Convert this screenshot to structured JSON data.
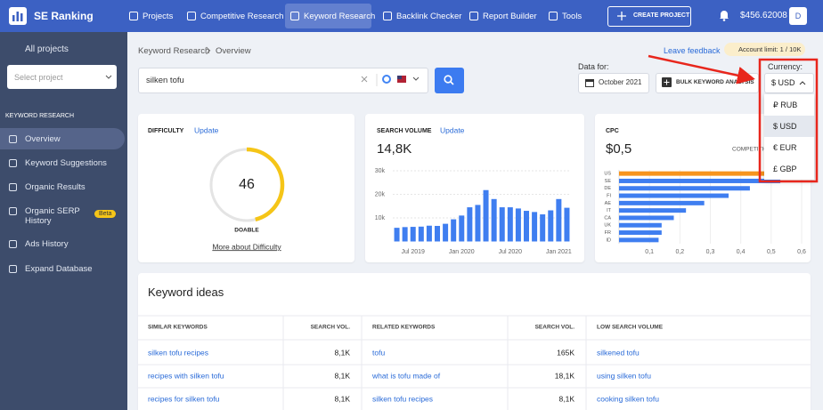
{
  "topnav": {
    "brand": "SE Ranking",
    "items": [
      "Projects",
      "Competitive Research",
      "Keyword Research",
      "Backlink Checker",
      "Report Builder",
      "Tools"
    ],
    "create_project": "CREATE PROJECT",
    "balance": "$456.62008",
    "avatar": "D"
  },
  "sidebar": {
    "all_projects": "All projects",
    "select_project": "Select project",
    "section": "KEYWORD RESEARCH",
    "items": [
      "Overview",
      "Keyword Suggestions",
      "Organic Results",
      "Organic SERP History",
      "Ads History",
      "Expand Database"
    ],
    "beta": "Beta"
  },
  "breadcrumb": [
    "Keyword Research",
    "Overview"
  ],
  "leave_feedback": "Leave feedback",
  "account_limit": "Account limit: 1 / 10K",
  "search": {
    "query": "silken tofu"
  },
  "data_for": {
    "label": "Data for:",
    "month": "October 2021"
  },
  "bulk": "BULK KEYWORD ANALYSIS",
  "currency": {
    "label": "Currency:",
    "selected": "$ USD",
    "options": [
      "₽ RUB",
      "$ USD",
      "€ EUR",
      "£ GBP"
    ]
  },
  "chart_data": [
    {
      "type": "gauge",
      "title": "DIFFICULTY",
      "link": "Update",
      "value": 46,
      "max": 100,
      "rating": "DOABLE",
      "more": "More about Difficulty",
      "color": "#f5c518"
    },
    {
      "type": "bar",
      "title": "SEARCH VOLUME",
      "link": "Update",
      "total": "14,8K",
      "categories": [
        null,
        null,
        "Jul 2019",
        null,
        null,
        null,
        null,
        null,
        "Jan 2020",
        null,
        null,
        null,
        null,
        null,
        "Jul 2020",
        null,
        null,
        null,
        null,
        null,
        "Jan 2021",
        null
      ],
      "values": [
        5800,
        6100,
        6200,
        6300,
        6700,
        6600,
        7500,
        9400,
        11000,
        14500,
        15500,
        21800,
        18000,
        14500,
        14500,
        14000,
        13000,
        12500,
        11500,
        13200,
        18000,
        14300
      ],
      "ylim": [
        0,
        32000
      ],
      "yticks": [
        {
          "value": 10000,
          "label": "10k"
        },
        {
          "value": 20000,
          "label": "20k"
        },
        {
          "value": 30000,
          "label": "30k"
        }
      ],
      "grid": true,
      "color": "#3f7ef0"
    },
    {
      "type": "hbar",
      "title": "CPC",
      "total": "$0,5",
      "competition": "COMPETITION",
      "categories": [
        "US",
        "SE",
        "DE",
        "FI",
        "AE",
        "IT",
        "CA",
        "UK",
        "FR",
        "ID"
      ],
      "values": [
        0.55,
        0.53,
        0.43,
        0.36,
        0.28,
        0.22,
        0.18,
        0.14,
        0.14,
        0.13
      ],
      "colors": [
        "#f7941d",
        "#3f7ef0",
        "#3f7ef0",
        "#3f7ef0",
        "#3f7ef0",
        "#3f7ef0",
        "#3f7ef0",
        "#3f7ef0",
        "#3f7ef0",
        "#3f7ef0"
      ],
      "xlim": [
        0,
        0.6
      ],
      "xticks": [
        {
          "value": 0.1,
          "label": "0,1"
        },
        {
          "value": 0.2,
          "label": "0,2"
        },
        {
          "value": 0.3,
          "label": "0,3"
        },
        {
          "value": 0.4,
          "label": "0,4"
        },
        {
          "value": 0.5,
          "label": "0,5"
        },
        {
          "value": 0.6,
          "label": "0,6"
        }
      ],
      "grid": true
    }
  ],
  "keyword_ideas": {
    "title": "Keyword ideas",
    "headers": [
      "SIMILAR KEYWORDS",
      "SEARCH VOL.",
      "RELATED KEYWORDS",
      "SEARCH VOL.",
      "LOW SEARCH VOLUME"
    ],
    "rows": [
      [
        "silken tofu recipes",
        "8,1K",
        "tofu",
        "165K",
        "silkened tofu"
      ],
      [
        "recipes with silken tofu",
        "8,1K",
        "what is tofu made of",
        "18,1K",
        "using silken tofu"
      ],
      [
        "recipes for silken tofu",
        "8,1K",
        "silken tofu recipes",
        "8,1K",
        "cooking silken tofu"
      ]
    ]
  }
}
